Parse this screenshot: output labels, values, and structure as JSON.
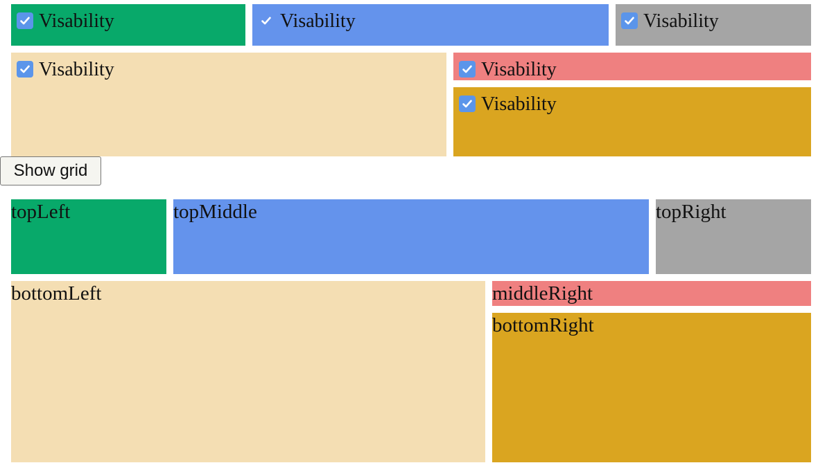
{
  "colors": {
    "green": "#08A96A",
    "blue": "#6493EC",
    "gray": "#A5A5A5",
    "wheat": "#F4DEB3",
    "salmon": "#EF8080",
    "gold": "#DAA520",
    "checkbox": "#5B95EA"
  },
  "visibility_controls": [
    {
      "label": "Visability",
      "checked": true
    },
    {
      "label": "Visability",
      "checked": true
    },
    {
      "label": "Visability",
      "checked": true
    },
    {
      "label": "Visability",
      "checked": true
    },
    {
      "label": "Visability",
      "checked": true
    },
    {
      "label": "Visability",
      "checked": true
    }
  ],
  "show_grid_button": {
    "label": "Show grid"
  },
  "grid_areas": [
    {
      "label": "topLeft"
    },
    {
      "label": "topMiddle"
    },
    {
      "label": "topRight"
    },
    {
      "label": "bottomLeft"
    },
    {
      "label": "middleRight"
    },
    {
      "label": "bottomRight"
    }
  ]
}
